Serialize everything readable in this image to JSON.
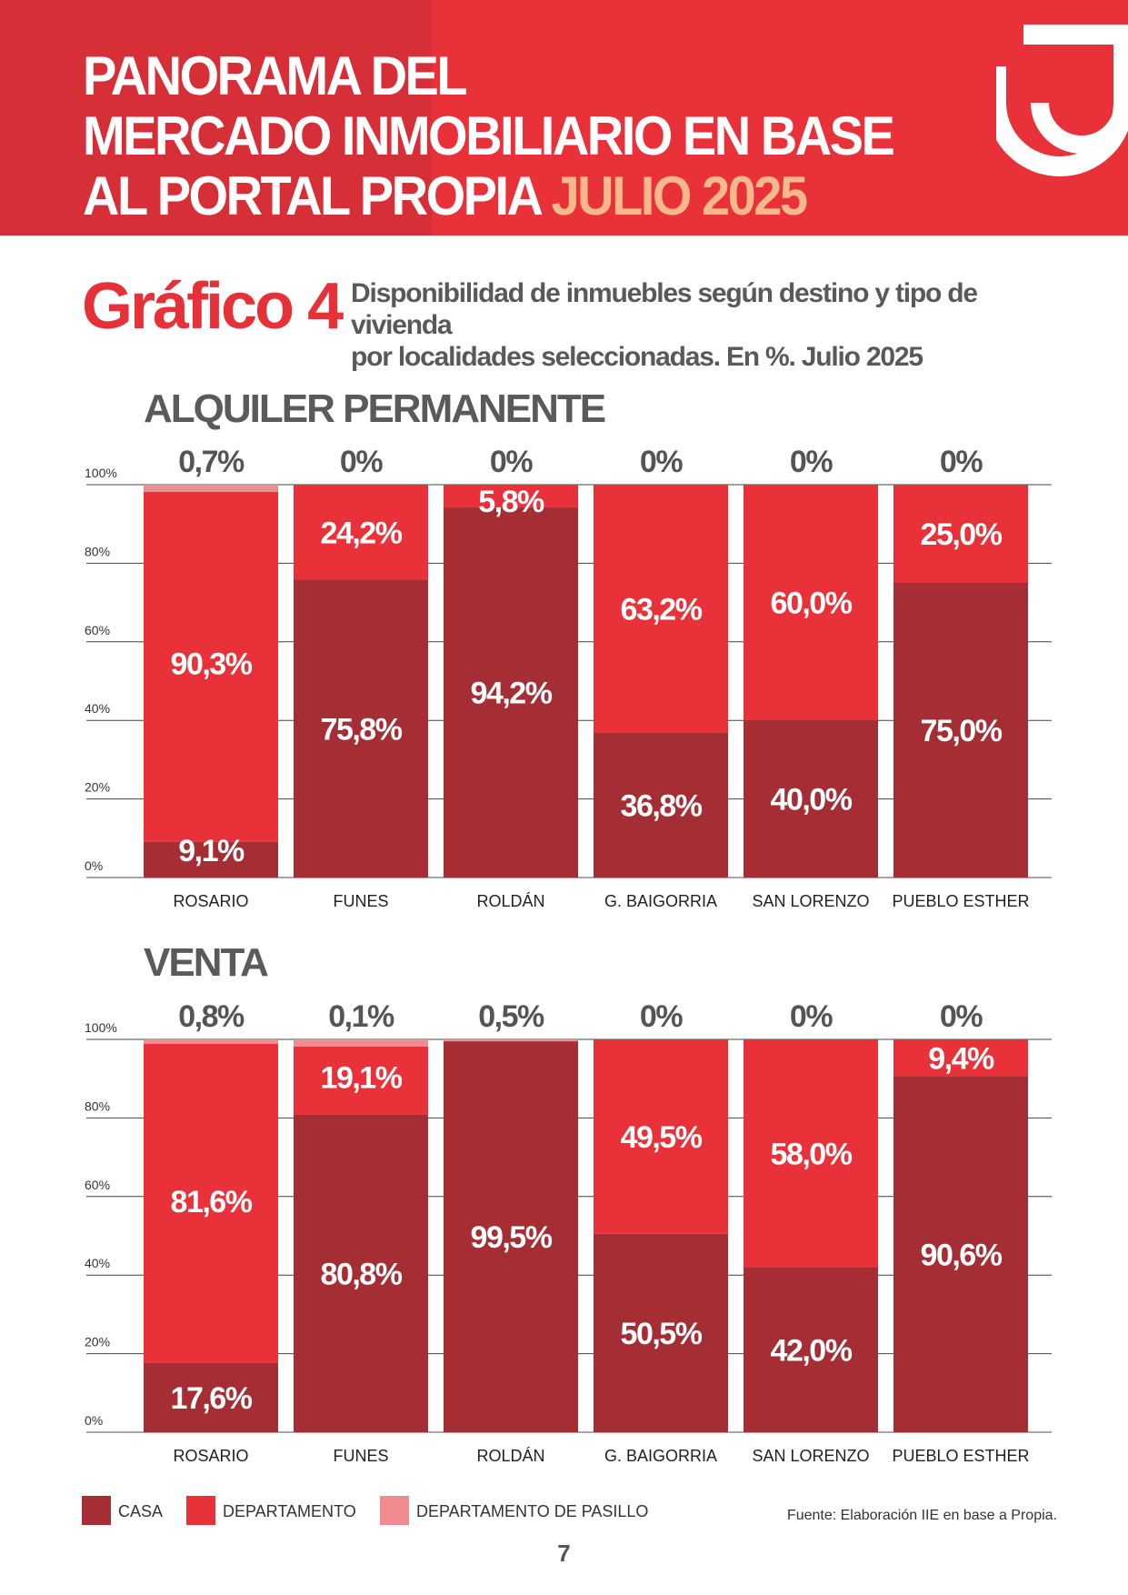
{
  "header": {
    "title_lines": [
      "PANORAMA DEL",
      "MERCADO INMOBILIARIO EN BASE",
      "AL PORTAL PROPIA"
    ],
    "title_accent": "JULIO 2025",
    "brand_color": "#e93139",
    "accent_color": "#f7b88c"
  },
  "graphic": {
    "label": "Gráfico 4",
    "description_lines": [
      "Disponibilidad de inmuebles según destino y tipo de vivienda",
      "por localidades seleccionadas. En %. Julio 2025"
    ]
  },
  "chart_data": [
    {
      "type": "bar",
      "stacked": true,
      "title": "ALQUILER PERMANENTE",
      "categories": [
        "ROSARIO",
        "FUNES",
        "ROLDÁN",
        "G. BAIGORRIA",
        "SAN LORENZO",
        "PUEBLO ESTHER"
      ],
      "y_ticks": [
        "0%",
        "20%",
        "40%",
        "60%",
        "80%",
        "100%"
      ],
      "ylim": [
        0,
        100
      ],
      "series": [
        {
          "name": "CASA",
          "color": "#a52e35",
          "values": [
            9.1,
            75.8,
            94.2,
            36.8,
            40.0,
            75.0
          ],
          "labels": [
            "9,1%",
            "75,8%",
            "94,2%",
            "36,8%",
            "40,0%",
            "75,0%"
          ]
        },
        {
          "name": "DEPARTAMENTO",
          "color": "#e93139",
          "values": [
            90.3,
            24.2,
            5.8,
            63.2,
            60.0,
            25.0
          ],
          "labels": [
            "90,3%",
            "24,2%",
            "5,8%",
            "63,2%",
            "60,0%",
            "25,0%"
          ]
        },
        {
          "name": "DEPARTAMENTO DE PASILLO",
          "color": "#f28b8f",
          "values": [
            0.7,
            0,
            0,
            0,
            0,
            0
          ],
          "labels": [
            "0,7%",
            "0%",
            "0%",
            "0%",
            "0%",
            "0%"
          ]
        }
      ]
    },
    {
      "type": "bar",
      "stacked": true,
      "title": "VENTA",
      "categories": [
        "ROSARIO",
        "FUNES",
        "ROLDÁN",
        "G. BAIGORRIA",
        "SAN LORENZO",
        "PUEBLO ESTHER"
      ],
      "y_ticks": [
        "0%",
        "20%",
        "40%",
        "60%",
        "80%",
        "100%"
      ],
      "ylim": [
        0,
        100
      ],
      "series": [
        {
          "name": "CASA",
          "color": "#a52e35",
          "values": [
            17.6,
            80.8,
            99.5,
            50.5,
            42.0,
            90.6
          ],
          "labels": [
            "17,6%",
            "80,8%",
            "99,5%",
            "50,5%",
            "42,0%",
            "90,6%"
          ]
        },
        {
          "name": "DEPARTAMENTO",
          "color": "#e93139",
          "values": [
            81.6,
            19.1,
            0.0,
            49.5,
            58.0,
            9.4
          ],
          "labels": [
            "81,6%",
            "19,1%",
            "",
            "49,5%",
            "58,0%",
            "9,4%"
          ]
        },
        {
          "name": "DEPARTAMENTO DE PASILLO",
          "color": "#f28b8f",
          "values": [
            0.8,
            0.1,
            0.5,
            0,
            0,
            0
          ],
          "labels": [
            "0,8%",
            "0,1%",
            "0,5%",
            "0%",
            "0%",
            "0%"
          ]
        }
      ]
    }
  ],
  "legend": [
    {
      "label": "CASA",
      "color": "#a52e35"
    },
    {
      "label": "DEPARTAMENTO",
      "color": "#e93139"
    },
    {
      "label": "DEPARTAMENTO DE PASILLO",
      "color": "#f28b8f"
    }
  ],
  "footer": {
    "source": "Fuente: Elaboración IIE en base a Propia.",
    "page_number": "7"
  }
}
